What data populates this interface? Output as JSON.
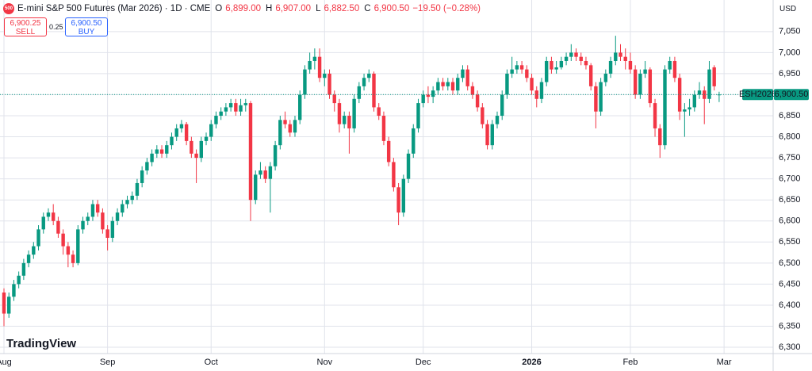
{
  "chart_data": {
    "type": "candlestick",
    "title": "E-mini S&P 500 Futures (Mar 2026) · 1D · CME",
    "legend": {
      "o_label": "O",
      "o": "6,899.00",
      "h_label": "H",
      "h": "6,907.00",
      "l_label": "L",
      "l": "6,882.50",
      "c_label": "C",
      "c": "6,900.50",
      "change": "−19.50 (−0.28%)"
    },
    "sell": {
      "price": "6,900.25",
      "label": "SELL"
    },
    "buy": {
      "price": "6,900.50",
      "label": "BUY"
    },
    "spread": "0.25",
    "currency": "USD",
    "brand": "TradingView",
    "last_price": {
      "value": 6900.5,
      "label": "6,900.50",
      "symbol": "ESH2026"
    },
    "up_color": "#089981",
    "down_color": "#f23645",
    "ylim": [
      6285,
      7125
    ],
    "yticks": [
      {
        "value": 6300,
        "label": "6,300"
      },
      {
        "value": 6350,
        "label": "6,350"
      },
      {
        "value": 6400,
        "label": "6,400"
      },
      {
        "value": 6450,
        "label": "6,450"
      },
      {
        "value": 6500,
        "label": "6,500"
      },
      {
        "value": 6550,
        "label": "6,550"
      },
      {
        "value": 6600,
        "label": "6,600"
      },
      {
        "value": 6650,
        "label": "6,650"
      },
      {
        "value": 6700,
        "label": "6,700"
      },
      {
        "value": 6750,
        "label": "6,750"
      },
      {
        "value": 6800,
        "label": "6,800"
      },
      {
        "value": 6850,
        "label": "6,850"
      },
      {
        "value": 6900,
        "label": "6,900"
      },
      {
        "value": 6950,
        "label": "6,950"
      },
      {
        "value": 7000,
        "label": "7,000"
      },
      {
        "value": 7050,
        "label": "7,050"
      }
    ],
    "grid": true,
    "categories": [
      "Aug",
      null,
      null,
      null,
      null,
      null,
      null,
      null,
      null,
      null,
      null,
      null,
      null,
      null,
      null,
      null,
      null,
      null,
      null,
      null,
      null,
      "Sep",
      null,
      null,
      null,
      null,
      null,
      null,
      null,
      null,
      null,
      null,
      null,
      null,
      null,
      null,
      null,
      null,
      null,
      null,
      null,
      null,
      "Oct",
      null,
      null,
      null,
      null,
      null,
      null,
      null,
      null,
      null,
      null,
      null,
      null,
      null,
      null,
      null,
      null,
      null,
      null,
      null,
      null,
      null,
      null,
      "Nov",
      null,
      null,
      null,
      null,
      null,
      null,
      null,
      null,
      null,
      null,
      null,
      null,
      null,
      null,
      null,
      null,
      null,
      null,
      null,
      "Dec",
      null,
      null,
      null,
      null,
      null,
      null,
      null,
      null,
      null,
      null,
      null,
      null,
      null,
      null,
      null,
      null,
      null,
      null,
      null,
      null,
      null,
      "2026",
      null,
      null,
      null,
      null,
      null,
      null,
      null,
      null,
      null,
      null,
      null,
      null,
      null,
      null,
      null,
      null,
      null,
      null,
      null,
      "Feb",
      null,
      null,
      null,
      null,
      null,
      null,
      null,
      null,
      null,
      null,
      null,
      null,
      null,
      null,
      null,
      null,
      null,
      null,
      "Mar"
    ],
    "ohlc": [
      [
        6430,
        6440,
        6350,
        6380
      ],
      [
        6380,
        6430,
        6370,
        6420
      ],
      [
        6420,
        6460,
        6410,
        6450
      ],
      [
        6450,
        6480,
        6440,
        6470
      ],
      [
        6470,
        6510,
        6460,
        6500
      ],
      [
        6500,
        6530,
        6490,
        6520
      ],
      [
        6520,
        6550,
        6510,
        6540
      ],
      [
        6540,
        6590,
        6530,
        6580
      ],
      [
        6580,
        6620,
        6570,
        6610
      ],
      [
        6610,
        6630,
        6600,
        6620
      ],
      [
        6620,
        6640,
        6590,
        6600
      ],
      [
        6600,
        6610,
        6560,
        6570
      ],
      [
        6570,
        6580,
        6520,
        6540
      ],
      [
        6540,
        6550,
        6490,
        6520
      ],
      [
        6520,
        6530,
        6490,
        6500
      ],
      [
        6500,
        6590,
        6495,
        6580
      ],
      [
        6580,
        6610,
        6570,
        6600
      ],
      [
        6600,
        6620,
        6590,
        6610
      ],
      [
        6610,
        6650,
        6600,
        6640
      ],
      [
        6640,
        6650,
        6610,
        6620
      ],
      [
        6620,
        6630,
        6570,
        6580
      ],
      [
        6580,
        6590,
        6530,
        6560
      ],
      [
        6560,
        6610,
        6550,
        6600
      ],
      [
        6600,
        6630,
        6590,
        6620
      ],
      [
        6620,
        6650,
        6610,
        6640
      ],
      [
        6640,
        6660,
        6630,
        6650
      ],
      [
        6650,
        6670,
        6640,
        6660
      ],
      [
        6660,
        6700,
        6650,
        6690
      ],
      [
        6690,
        6730,
        6680,
        6720
      ],
      [
        6720,
        6750,
        6710,
        6740
      ],
      [
        6740,
        6770,
        6730,
        6760
      ],
      [
        6760,
        6780,
        6750,
        6770
      ],
      [
        6770,
        6780,
        6750,
        6760
      ],
      [
        6760,
        6790,
        6750,
        6780
      ],
      [
        6780,
        6810,
        6770,
        6800
      ],
      [
        6800,
        6830,
        6790,
        6820
      ],
      [
        6820,
        6840,
        6810,
        6830
      ],
      [
        6830,
        6835,
        6780,
        6790
      ],
      [
        6790,
        6800,
        6750,
        6760
      ],
      [
        6760,
        6770,
        6690,
        6750
      ],
      [
        6750,
        6800,
        6740,
        6790
      ],
      [
        6790,
        6810,
        6780,
        6800
      ],
      [
        6800,
        6840,
        6790,
        6830
      ],
      [
        6830,
        6860,
        6820,
        6850
      ],
      [
        6850,
        6870,
        6840,
        6860
      ],
      [
        6860,
        6880,
        6850,
        6870
      ],
      [
        6870,
        6890,
        6860,
        6880
      ],
      [
        6880,
        6890,
        6850,
        6860
      ],
      [
        6860,
        6890,
        6850,
        6875
      ],
      [
        6875,
        6890,
        6860,
        6880
      ],
      [
        6880,
        6885,
        6600,
        6650
      ],
      [
        6650,
        6720,
        6640,
        6710
      ],
      [
        6710,
        6740,
        6700,
        6720
      ],
      [
        6720,
        6730,
        6690,
        6700
      ],
      [
        6700,
        6740,
        6620,
        6730
      ],
      [
        6730,
        6790,
        6720,
        6780
      ],
      [
        6780,
        6850,
        6770,
        6840
      ],
      [
        6840,
        6860,
        6820,
        6830
      ],
      [
        6830,
        6840,
        6800,
        6810
      ],
      [
        6810,
        6850,
        6800,
        6840
      ],
      [
        6840,
        6910,
        6830,
        6900
      ],
      [
        6900,
        6970,
        6890,
        6960
      ],
      [
        6960,
        7000,
        6950,
        6980
      ],
      [
        6980,
        7010,
        6960,
        6990
      ],
      [
        6990,
        7010,
        6930,
        6940
      ],
      [
        6940,
        6960,
        6920,
        6950
      ],
      [
        6950,
        6960,
        6890,
        6900
      ],
      [
        6900,
        6910,
        6860,
        6880
      ],
      [
        6880,
        6890,
        6810,
        6830
      ],
      [
        6830,
        6860,
        6820,
        6850
      ],
      [
        6850,
        6860,
        6760,
        6820
      ],
      [
        6820,
        6900,
        6810,
        6890
      ],
      [
        6890,
        6930,
        6880,
        6920
      ],
      [
        6920,
        6950,
        6910,
        6940
      ],
      [
        6940,
        6960,
        6930,
        6950
      ],
      [
        6950,
        6955,
        6860,
        6870
      ],
      [
        6870,
        6880,
        6840,
        6850
      ],
      [
        6850,
        6860,
        6780,
        6790
      ],
      [
        6790,
        6800,
        6730,
        6740
      ],
      [
        6740,
        6750,
        6670,
        6680
      ],
      [
        6680,
        6690,
        6590,
        6620
      ],
      [
        6620,
        6710,
        6610,
        6700
      ],
      [
        6700,
        6770,
        6690,
        6760
      ],
      [
        6760,
        6830,
        6750,
        6820
      ],
      [
        6820,
        6890,
        6810,
        6880
      ],
      [
        6880,
        6910,
        6870,
        6900
      ],
      [
        6900,
        6920,
        6880,
        6895
      ],
      [
        6895,
        6920,
        6880,
        6910
      ],
      [
        6910,
        6940,
        6900,
        6930
      ],
      [
        6930,
        6940,
        6910,
        6920
      ],
      [
        6920,
        6940,
        6910,
        6930
      ],
      [
        6930,
        6940,
        6900,
        6910
      ],
      [
        6910,
        6950,
        6900,
        6940
      ],
      [
        6940,
        6970,
        6930,
        6960
      ],
      [
        6960,
        6970,
        6910,
        6920
      ],
      [
        6920,
        6930,
        6890,
        6900
      ],
      [
        6900,
        6910,
        6860,
        6870
      ],
      [
        6870,
        6880,
        6820,
        6830
      ],
      [
        6830,
        6840,
        6770,
        6780
      ],
      [
        6780,
        6840,
        6770,
        6830
      ],
      [
        6830,
        6860,
        6820,
        6850
      ],
      [
        6850,
        6910,
        6840,
        6900
      ],
      [
        6900,
        6960,
        6890,
        6950
      ],
      [
        6950,
        6990,
        6940,
        6960
      ],
      [
        6960,
        6980,
        6950,
        6970
      ],
      [
        6970,
        6980,
        6950,
        6960
      ],
      [
        6960,
        6970,
        6930,
        6940
      ],
      [
        6940,
        6950,
        6900,
        6910
      ],
      [
        6910,
        6920,
        6870,
        6890
      ],
      [
        6890,
        6940,
        6880,
        6930
      ],
      [
        6930,
        6990,
        6920,
        6980
      ],
      [
        6980,
        6990,
        6950,
        6960
      ],
      [
        6960,
        6980,
        6950,
        6965
      ],
      [
        6965,
        6990,
        6960,
        6980
      ],
      [
        6980,
        7000,
        6970,
        6990
      ],
      [
        6990,
        7020,
        6980,
        7000
      ],
      [
        7000,
        7010,
        6980,
        6990
      ],
      [
        6990,
        7000,
        6970,
        6980
      ],
      [
        6980,
        6990,
        6960,
        6970
      ],
      [
        6970,
        6975,
        6910,
        6920
      ],
      [
        6920,
        6930,
        6820,
        6860
      ],
      [
        6860,
        6940,
        6850,
        6930
      ],
      [
        6930,
        6960,
        6920,
        6950
      ],
      [
        6950,
        6990,
        6940,
        6980
      ],
      [
        6980,
        7040,
        6970,
        7000
      ],
      [
        7000,
        7020,
        6980,
        6990
      ],
      [
        6990,
        7010,
        6960,
        6980
      ],
      [
        6980,
        7000,
        6950,
        6960
      ],
      [
        6960,
        6970,
        6890,
        6900
      ],
      [
        6900,
        6960,
        6890,
        6950
      ],
      [
        6950,
        6980,
        6940,
        6960
      ],
      [
        6960,
        6965,
        6870,
        6880
      ],
      [
        6880,
        6890,
        6800,
        6820
      ],
      [
        6820,
        6830,
        6750,
        6780
      ],
      [
        6780,
        6970,
        6770,
        6960
      ],
      [
        6960,
        6990,
        6950,
        6980
      ],
      [
        6980,
        6990,
        6930,
        6940
      ],
      [
        6940,
        6950,
        6840,
        6860
      ],
      [
        6860,
        6880,
        6800,
        6865
      ],
      [
        6865,
        6890,
        6850,
        6870
      ],
      [
        6870,
        6910,
        6860,
        6900
      ],
      [
        6900,
        6930,
        6890,
        6910
      ],
      [
        6910,
        6920,
        6830,
        6890
      ],
      [
        6890,
        6980,
        6880,
        6960
      ],
      [
        6965,
        6970,
        6910,
        6920
      ],
      [
        6899,
        6907,
        6882.5,
        6900.5
      ],
      null
    ]
  }
}
